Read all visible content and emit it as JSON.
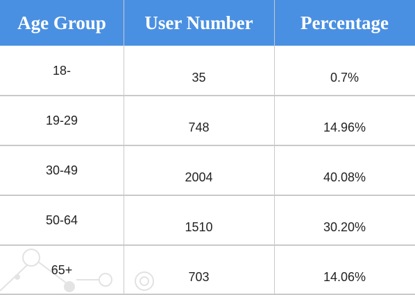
{
  "table": {
    "header": [
      "Age Group",
      "User Number",
      "Percentage"
    ],
    "rows": [
      [
        "18-",
        "35",
        "0.7%"
      ],
      [
        "19-29",
        "748",
        "14.96%"
      ],
      [
        "30-49",
        "2004",
        "40.08%"
      ],
      [
        "50-64",
        "1510",
        "30.20%"
      ],
      [
        "65+",
        "703",
        "14.06%"
      ]
    ]
  }
}
